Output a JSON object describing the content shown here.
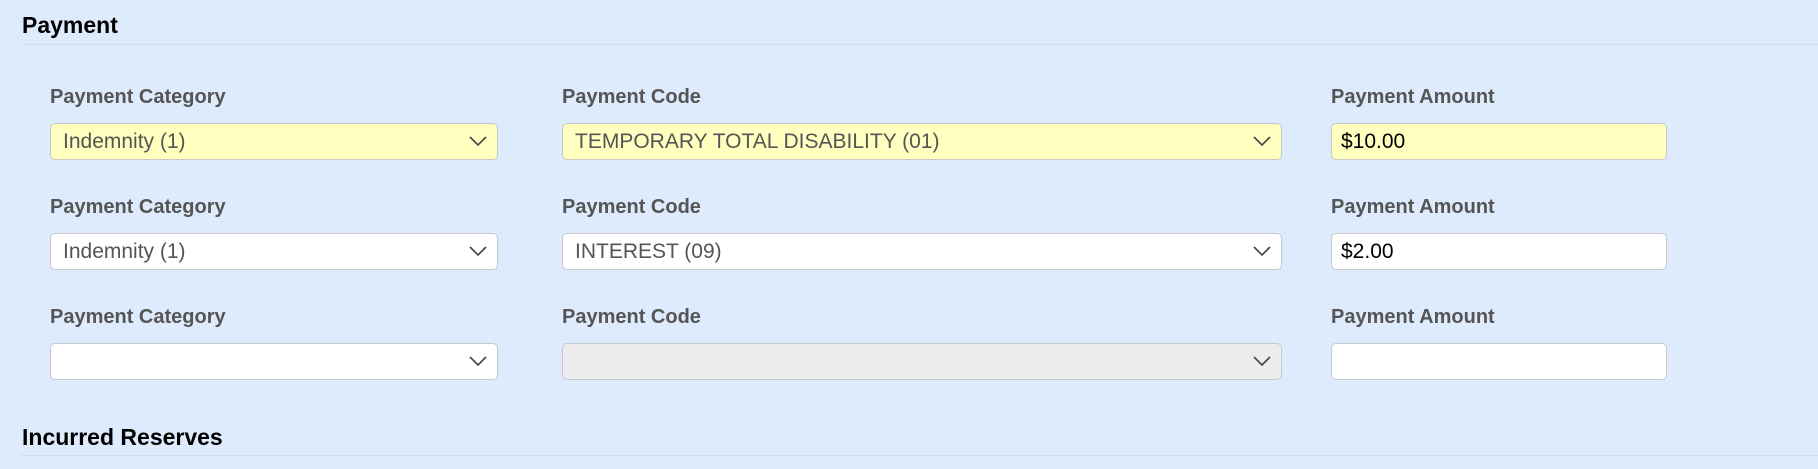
{
  "sections": {
    "payment": "Payment",
    "incurred_reserves": "Incurred Reserves"
  },
  "labels": {
    "category": "Payment Category",
    "code": "Payment Code",
    "amount": "Payment Amount"
  },
  "rows": [
    {
      "category": "Indemnity (1)",
      "code": "TEMPORARY TOTAL DISABILITY (01)",
      "amount": "$10.00",
      "highlighted": true,
      "code_disabled": false
    },
    {
      "category": "Indemnity (1)",
      "code": "INTEREST (09)",
      "amount": "$2.00",
      "highlighted": false,
      "code_disabled": false
    },
    {
      "category": "",
      "code": "",
      "amount": "",
      "highlighted": false,
      "code_disabled": true
    }
  ],
  "colors": {
    "background": "#deebfd",
    "highlight": "#ffffc0",
    "disabled": "#ececec",
    "label": "#555555"
  },
  "icons": {
    "dropdown": "chevron-down-icon"
  }
}
